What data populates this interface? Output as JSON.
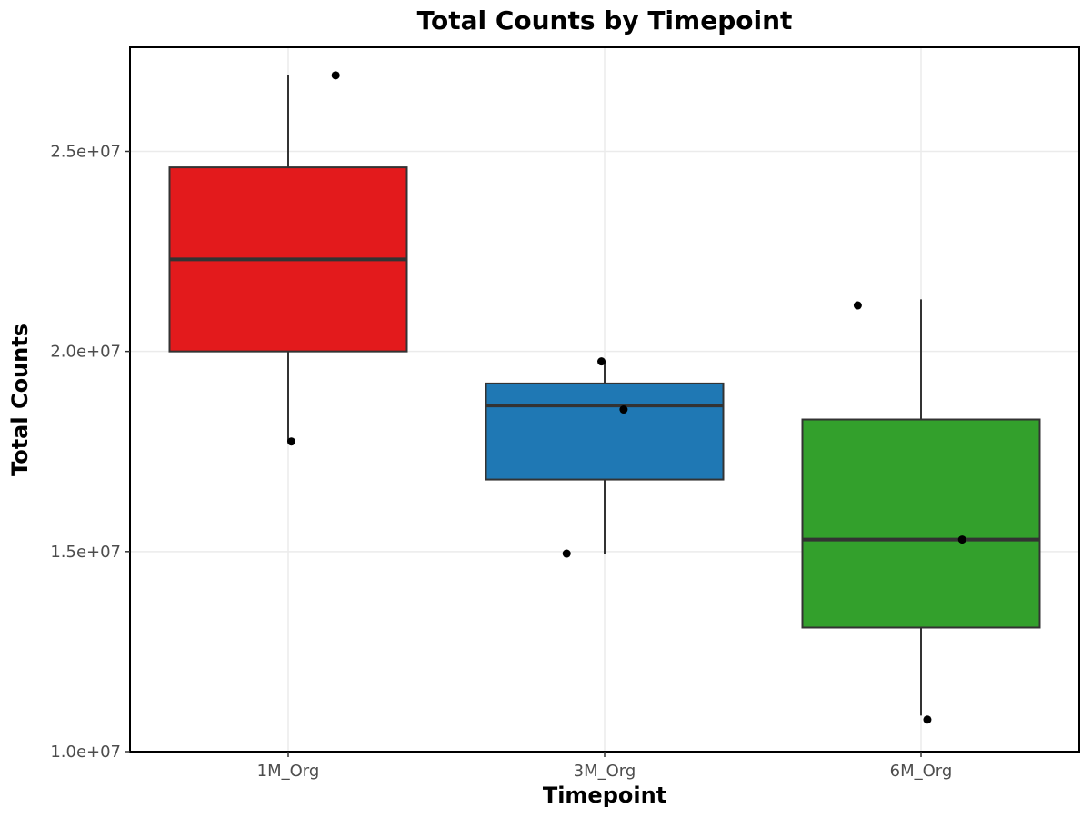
{
  "chart_data": {
    "type": "boxplot",
    "title": "Total Counts by Timepoint",
    "xlabel": "Timepoint",
    "ylabel": "Total Counts",
    "categories": [
      "1M_Org",
      "3M_Org",
      "6M_Org"
    ],
    "ylim": [
      10000000,
      27600000
    ],
    "yticks": [
      10000000,
      15000000,
      20000000,
      25000000
    ],
    "ytick_labels": [
      "1.0e+07",
      "1.5e+07",
      "2.0e+07",
      "2.5e+07"
    ],
    "grid": true,
    "legend": "none",
    "boxes": [
      {
        "category": "1M_Org",
        "color": "#E31A1C",
        "whisker_low": 17750000,
        "q1": 20000000,
        "median": 22300000,
        "q3": 24600000,
        "whisker_high": 26900000
      },
      {
        "category": "3M_Org",
        "color": "#1F78B4",
        "whisker_low": 14950000,
        "q1": 16800000,
        "median": 18650000,
        "q3": 19200000,
        "whisker_high": 19750000
      },
      {
        "category": "6M_Org",
        "color": "#33A02C",
        "whisker_low": 10900000,
        "q1": 13100000,
        "median": 15300000,
        "q3": 18300000,
        "whisker_high": 21300000
      }
    ],
    "points": [
      {
        "category": "1M_Org",
        "jitter": 0.15,
        "y": 26900000
      },
      {
        "category": "1M_Org",
        "jitter": 0.01,
        "y": 17750000
      },
      {
        "category": "3M_Org",
        "jitter": -0.01,
        "y": 19750000
      },
      {
        "category": "3M_Org",
        "jitter": 0.06,
        "y": 18550000
      },
      {
        "category": "3M_Org",
        "jitter": -0.12,
        "y": 14950000
      },
      {
        "category": "6M_Org",
        "jitter": -0.2,
        "y": 21150000
      },
      {
        "category": "6M_Org",
        "jitter": 0.13,
        "y": 15300000
      },
      {
        "category": "6M_Org",
        "jitter": 0.02,
        "y": 10800000
      }
    ]
  }
}
